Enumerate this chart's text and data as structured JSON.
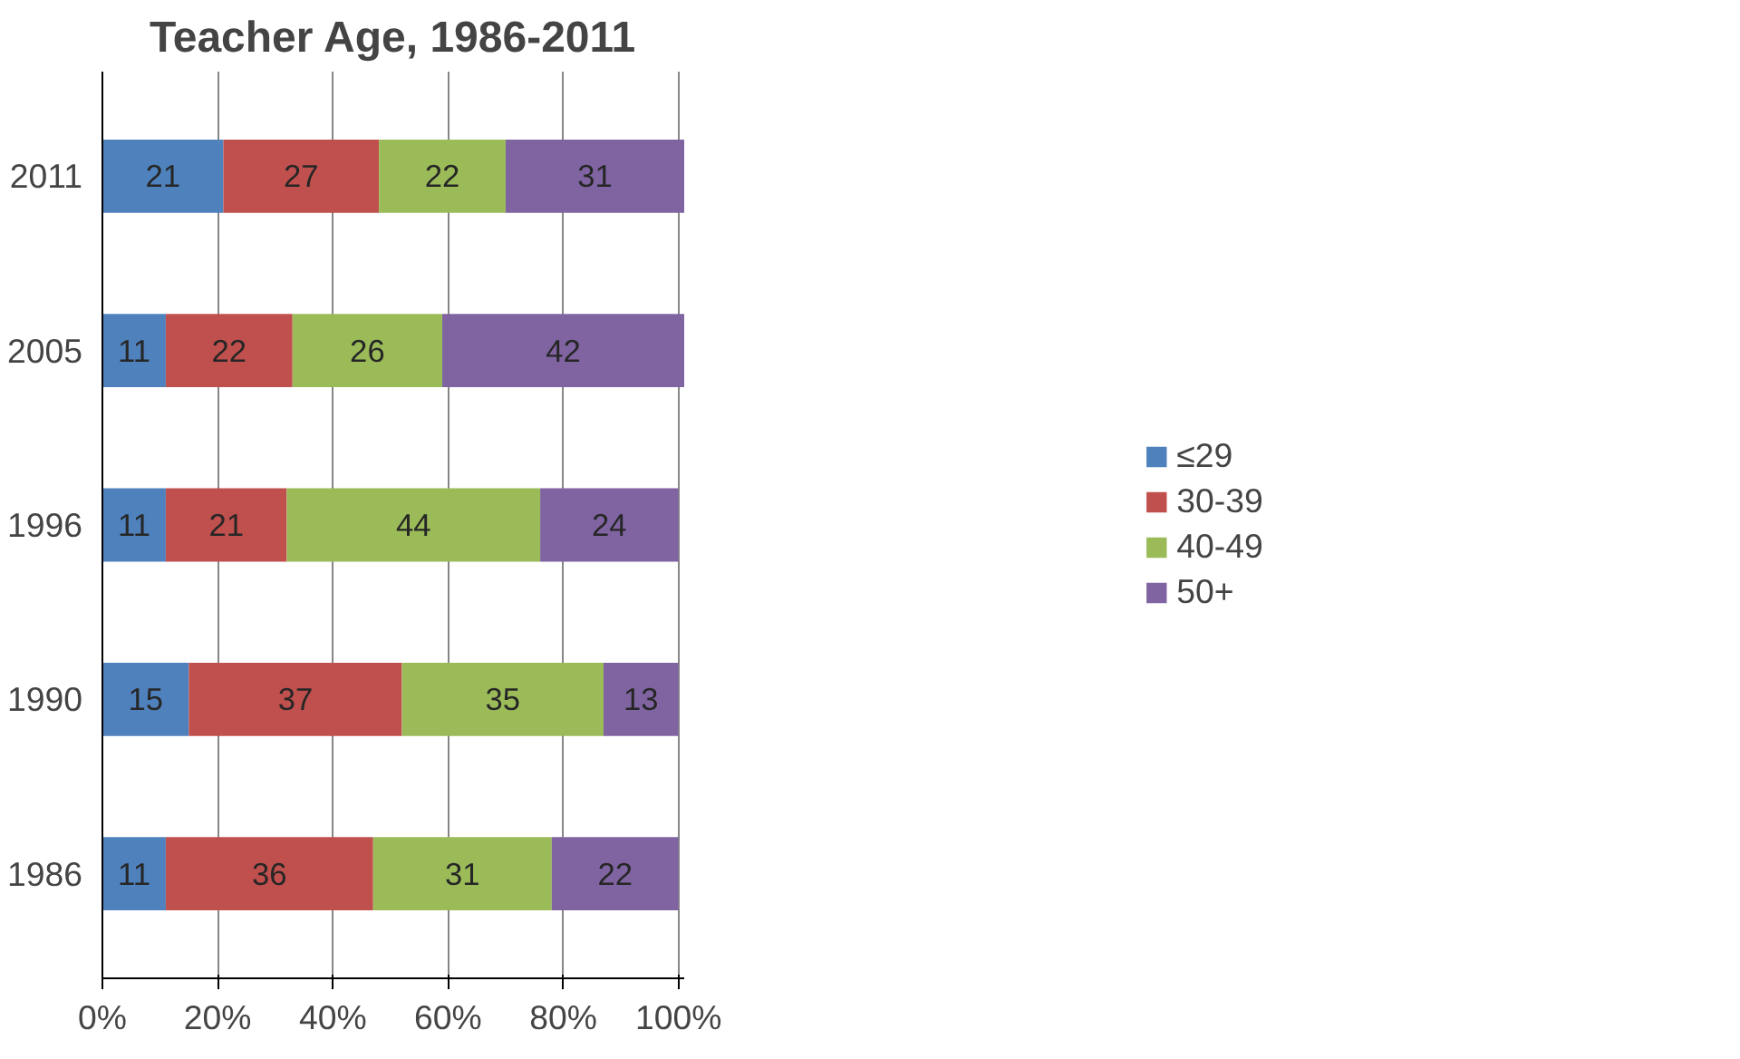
{
  "chart_data": {
    "type": "bar",
    "orientation": "horizontal",
    "stacked": true,
    "title": "Teacher Age, 1986-2011",
    "categories": [
      "2011",
      "2005",
      "1996",
      "1990",
      "1986"
    ],
    "series": [
      {
        "name": "≤29",
        "color": "#4f81bd",
        "values": [
          21,
          11,
          11,
          15,
          11
        ]
      },
      {
        "name": "30-39",
        "color": "#c0504d",
        "values": [
          27,
          22,
          21,
          37,
          36
        ]
      },
      {
        "name": "40-49",
        "color": "#9bbb59",
        "values": [
          22,
          26,
          44,
          35,
          31
        ]
      },
      {
        "name": "50+",
        "color": "#8064a2",
        "values": [
          31,
          42,
          24,
          13,
          22
        ]
      }
    ],
    "xlim": [
      0,
      101
    ],
    "xticks": [
      {
        "value": 0,
        "label": "0%"
      },
      {
        "value": 20,
        "label": "20%"
      },
      {
        "value": 40,
        "label": "40%"
      },
      {
        "value": 60,
        "label": "60%"
      },
      {
        "value": 80,
        "label": "80%"
      },
      {
        "value": 100,
        "label": "100%"
      }
    ],
    "data_labels": true,
    "grid": "x",
    "legend": "right"
  }
}
